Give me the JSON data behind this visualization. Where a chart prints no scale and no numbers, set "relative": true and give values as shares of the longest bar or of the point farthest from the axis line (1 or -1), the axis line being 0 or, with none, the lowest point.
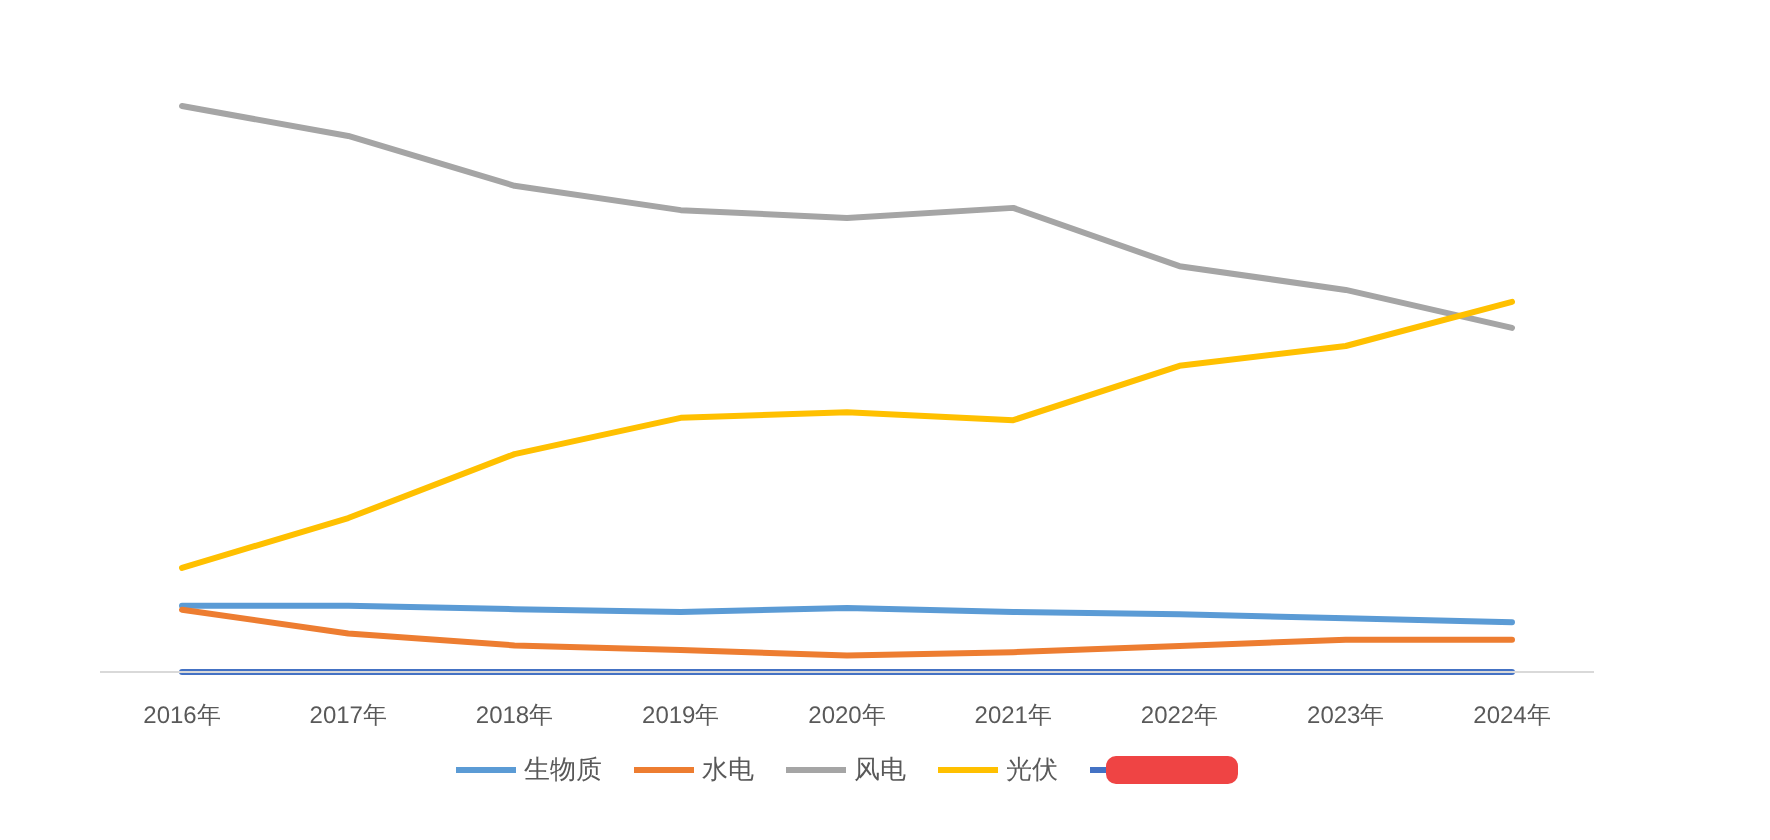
{
  "chart_data": {
    "type": "line",
    "relative": true,
    "categories": [
      "2016年",
      "2017年",
      "2018年",
      "2019年",
      "2020年",
      "2021年",
      "2022年",
      "2023年",
      "2024年"
    ],
    "series": [
      {
        "name": "生物质",
        "color": "#5b9bd5",
        "values": [
          0.117,
          0.117,
          0.111,
          0.106,
          0.113,
          0.106,
          0.102,
          0.095,
          0.088
        ]
      },
      {
        "name": "水电",
        "color": "#ed7d31",
        "values": [
          0.11,
          0.068,
          0.047,
          0.039,
          0.029,
          0.035,
          0.046,
          0.057,
          0.057
        ]
      },
      {
        "name": "风电",
        "color": "#a5a5a5",
        "values": [
          1.0,
          0.947,
          0.859,
          0.816,
          0.802,
          0.82,
          0.717,
          0.675,
          0.608
        ]
      },
      {
        "name": "光伏",
        "color": "#ffc000",
        "values": [
          0.184,
          0.272,
          0.385,
          0.449,
          0.459,
          0.445,
          0.541,
          0.576,
          0.654
        ]
      },
      {
        "color": "#4472c4",
        "values": [
          0,
          0,
          0,
          0,
          0,
          0,
          0,
          0,
          0
        ]
      }
    ],
    "legend": "bottom",
    "marker": "none",
    "line_style": "solid"
  }
}
